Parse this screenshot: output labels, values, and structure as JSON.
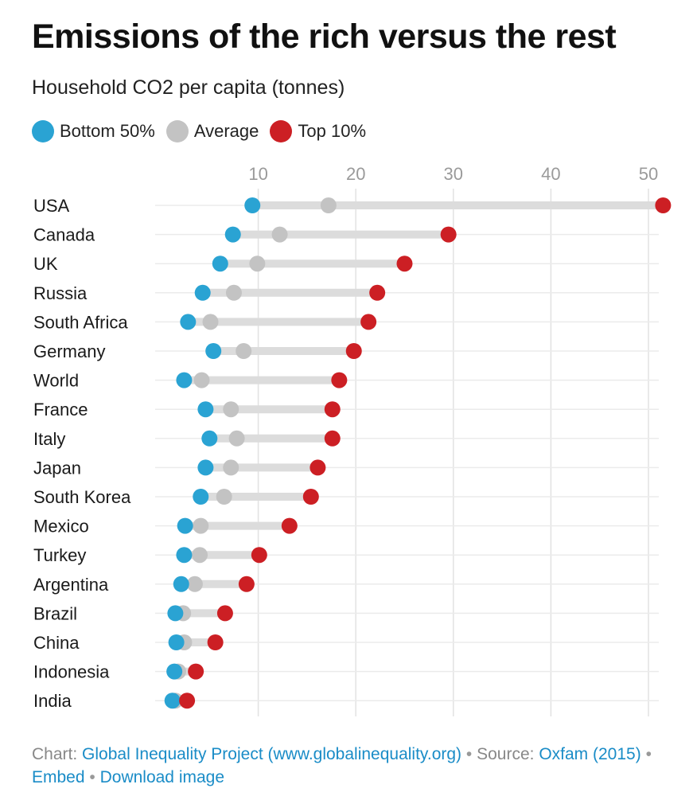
{
  "chart_data": {
    "type": "dot",
    "title": "Emissions of the rich versus the rest",
    "subtitle": "Household CO2 per capita (tonnes)",
    "xlim": [
      0,
      52
    ],
    "xticks": [
      10,
      20,
      30,
      40,
      50
    ],
    "grid": true,
    "legend_position": "top-left",
    "categories": [
      "USA",
      "Canada",
      "UK",
      "Russia",
      "South Africa",
      "Germany",
      "World",
      "France",
      "Italy",
      "Japan",
      "South Korea",
      "Mexico",
      "Turkey",
      "Argentina",
      "Brazil",
      "China",
      "Indonesia",
      "India"
    ],
    "series": [
      {
        "name": "Bottom 50%",
        "color": "#2aa3d3",
        "values": [
          9.4,
          7.4,
          6.1,
          4.3,
          2.8,
          5.4,
          2.4,
          4.6,
          5.0,
          4.6,
          4.1,
          2.5,
          2.4,
          2.1,
          1.5,
          1.6,
          1.4,
          1.2
        ]
      },
      {
        "name": "Average",
        "color": "#c3c3c3",
        "values": [
          17.2,
          12.2,
          9.9,
          7.5,
          5.1,
          8.5,
          4.2,
          7.2,
          7.8,
          7.2,
          6.5,
          4.1,
          4.0,
          3.5,
          2.3,
          2.4,
          1.8,
          1.5
        ]
      },
      {
        "name": "Top 10%",
        "color": "#cc1f24",
        "values": [
          51.5,
          29.5,
          25.0,
          22.2,
          21.3,
          19.8,
          18.3,
          17.6,
          17.6,
          16.1,
          15.4,
          13.2,
          10.1,
          8.8,
          6.6,
          5.6,
          3.6,
          2.7
        ]
      }
    ]
  },
  "footer": {
    "chart_prefix": "Chart:",
    "chart_link": "Global Inequality Project (www.globalinequality.org)",
    "source_prefix": "Source:",
    "source_link": "Oxfam (2015)",
    "embed": "Embed",
    "download": "Download image",
    "separator": "•"
  }
}
